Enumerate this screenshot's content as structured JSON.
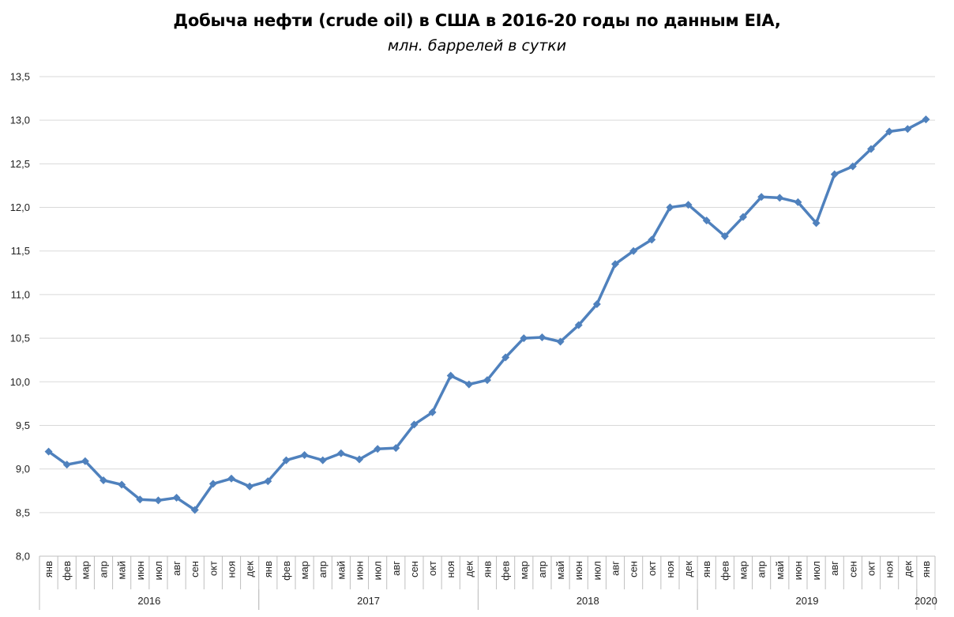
{
  "chart_data": {
    "type": "line",
    "title": "Добыча нефти (crude oil) в США в 2016-20 годы по данным EIA,",
    "subtitle": "млн. баррелей в сутки",
    "xlabel": "",
    "ylabel": "",
    "ylim": [
      8.0,
      13.5
    ],
    "y_ticks": [
      "8,0",
      "8,5",
      "9,0",
      "9,5",
      "10,0",
      "10,5",
      "11,0",
      "11,5",
      "12,0",
      "12,5",
      "13,0",
      "13,5"
    ],
    "y_tick_values": [
      8.0,
      8.5,
      9.0,
      9.5,
      10.0,
      10.5,
      11.0,
      11.5,
      12.0,
      12.5,
      13.0,
      13.5
    ],
    "grid": true,
    "legend": "none",
    "line_color": "#4F81BD",
    "groups": [
      {
        "year": "2016",
        "months": [
          "янв",
          "фев",
          "мар",
          "апр",
          "май",
          "июн",
          "июл",
          "авг",
          "сен",
          "окт",
          "ноя",
          "дек"
        ]
      },
      {
        "year": "2017",
        "months": [
          "янв",
          "фев",
          "мар",
          "апр",
          "май",
          "июн",
          "июл",
          "авг",
          "сен",
          "окт",
          "ноя",
          "дек"
        ]
      },
      {
        "year": "2018",
        "months": [
          "янв",
          "фев",
          "мар",
          "апр",
          "май",
          "июн",
          "июл",
          "авг",
          "сен",
          "окт",
          "ноя",
          "дек"
        ]
      },
      {
        "year": "2019",
        "months": [
          "янв",
          "фев",
          "мар",
          "апр",
          "май",
          "июн",
          "июл",
          "авг",
          "сен",
          "окт",
          "ноя",
          "дек"
        ]
      },
      {
        "year": "2020",
        "months": [
          "янв"
        ]
      }
    ],
    "values": [
      9.2,
      9.05,
      9.09,
      8.87,
      8.82,
      8.65,
      8.64,
      8.67,
      8.53,
      8.83,
      8.89,
      8.8,
      8.86,
      9.1,
      9.16,
      9.1,
      9.18,
      9.11,
      9.23,
      9.24,
      9.51,
      9.65,
      10.07,
      9.97,
      10.02,
      10.28,
      10.5,
      10.51,
      10.46,
      10.65,
      10.89,
      11.35,
      11.5,
      11.63,
      12.0,
      12.03,
      11.85,
      11.67,
      11.89,
      12.12,
      12.11,
      12.06,
      11.82,
      12.38,
      12.47,
      12.67,
      12.87,
      12.9,
      13.01
    ]
  }
}
